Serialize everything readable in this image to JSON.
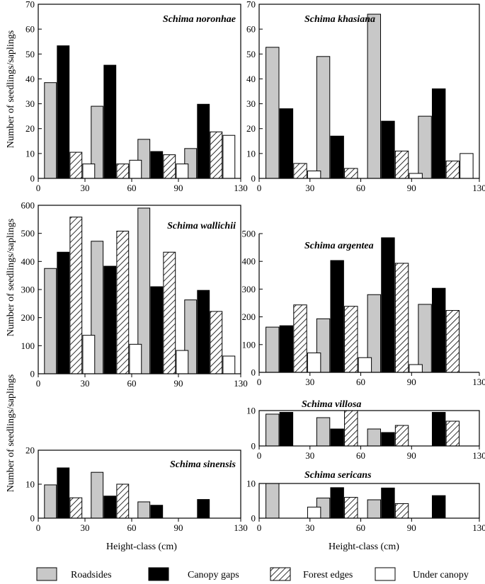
{
  "colors": {
    "roadsides": "#c8c8c8",
    "canopy_gaps": "#000000",
    "forest_edges": "hatch",
    "under_canopy": "#ffffff"
  },
  "legend": [
    {
      "key": "roadsides",
      "label": "Roadsides"
    },
    {
      "key": "canopy_gaps",
      "label": "Canopy gaps"
    },
    {
      "key": "forest_edges",
      "label": "Forest edges"
    },
    {
      "key": "under_canopy",
      "label": "Under canopy"
    }
  ],
  "labels": {
    "ylabel_left_top": "Number of seedlings/saplings",
    "ylabel_left_middle": "Number of seedlings/saplings",
    "ylabel_left_bottom": "Number of seedlings/saplings",
    "xlabel_left": "Height-class (cm)",
    "xlabel_right": "Height-class (cm)"
  },
  "chart_data": [
    {
      "id": "noronhae",
      "type": "bar",
      "title": "Schima noronhae",
      "xlim": [
        0,
        130
      ],
      "xticks": [
        0,
        30,
        60,
        90,
        130
      ],
      "ylim": [
        0,
        70
      ],
      "yticks": [
        0,
        10,
        20,
        30,
        40,
        50,
        60,
        70
      ],
      "categories": [
        "0-30",
        "30-60",
        "60-90",
        "90-130"
      ],
      "series": [
        {
          "name": "Roadsides",
          "key": "roadsides",
          "values": [
            38.5,
            29,
            15.7,
            12
          ]
        },
        {
          "name": "Canopy gaps",
          "key": "canopy_gaps",
          "values": [
            53.3,
            45.5,
            10.8,
            29.8
          ]
        },
        {
          "name": "Forest edges",
          "key": "forest_edges",
          "values": [
            10.5,
            5.8,
            9.5,
            18.7
          ]
        },
        {
          "name": "Under canopy",
          "key": "under_canopy",
          "values": [
            5.8,
            7.3,
            5.8,
            17.3
          ]
        }
      ]
    },
    {
      "id": "khasiana",
      "type": "bar",
      "title": "Schima khasiana",
      "xlim": [
        0,
        130
      ],
      "xticks": [
        0,
        30,
        60,
        90,
        130
      ],
      "ylim": [
        0,
        70
      ],
      "yticks": [
        0,
        10,
        20,
        30,
        40,
        50,
        60,
        70
      ],
      "categories": [
        "0-30",
        "30-60",
        "60-90",
        "90-130"
      ],
      "series": [
        {
          "name": "Roadsides",
          "key": "roadsides",
          "values": [
            52.7,
            49,
            66,
            25
          ]
        },
        {
          "name": "Canopy gaps",
          "key": "canopy_gaps",
          "values": [
            28,
            17,
            23,
            36
          ]
        },
        {
          "name": "Forest edges",
          "key": "forest_edges",
          "values": [
            6,
            4,
            11,
            7
          ]
        },
        {
          "name": "Under canopy",
          "key": "under_canopy",
          "values": [
            3,
            0,
            2,
            10
          ]
        }
      ]
    },
    {
      "id": "wallichii",
      "type": "bar",
      "title": "Schima wallichii",
      "xlim": [
        0,
        130
      ],
      "xticks": [
        0,
        30,
        60,
        90,
        130
      ],
      "ylim": [
        0,
        600
      ],
      "yticks": [
        0,
        100,
        200,
        300,
        400,
        500,
        600
      ],
      "categories": [
        "0-30",
        "30-60",
        "60-90",
        "90-130"
      ],
      "series": [
        {
          "name": "Roadsides",
          "key": "roadsides",
          "values": [
            375,
            472,
            590,
            263
          ]
        },
        {
          "name": "Canopy gaps",
          "key": "canopy_gaps",
          "values": [
            433,
            383,
            310,
            297
          ]
        },
        {
          "name": "Forest edges",
          "key": "forest_edges",
          "values": [
            558,
            508,
            433,
            222
          ]
        },
        {
          "name": "Under canopy",
          "key": "under_canopy",
          "values": [
            137,
            105,
            83,
            63
          ]
        }
      ]
    },
    {
      "id": "argentea",
      "type": "bar",
      "title": "Schima argentea",
      "xlim": [
        0,
        130
      ],
      "xticks": [
        0,
        30,
        60,
        90,
        130
      ],
      "ylim": [
        0,
        500
      ],
      "yticks": [
        0,
        100,
        200,
        300,
        400,
        500
      ],
      "categories": [
        "0-30",
        "30-60",
        "60-90",
        "90-130"
      ],
      "series": [
        {
          "name": "Roadsides",
          "key": "roadsides",
          "values": [
            163,
            193,
            280,
            245
          ]
        },
        {
          "name": "Canopy gaps",
          "key": "canopy_gaps",
          "values": [
            168,
            403,
            485,
            303
          ]
        },
        {
          "name": "Forest edges",
          "key": "forest_edges",
          "values": [
            243,
            238,
            393,
            223
          ]
        },
        {
          "name": "Under canopy",
          "key": "under_canopy",
          "values": [
            70,
            53,
            28,
            0
          ]
        }
      ]
    },
    {
      "id": "villosa",
      "type": "bar",
      "title": "Schima villosa",
      "xlim": [
        0,
        130
      ],
      "xticks": [
        0,
        30,
        60,
        90,
        130
      ],
      "ylim": [
        0,
        10
      ],
      "yticks": [
        0,
        10
      ],
      "categories": [
        "0-30",
        "30-60",
        "60-90",
        "90-130"
      ],
      "series": [
        {
          "name": "Roadsides",
          "key": "roadsides",
          "values": [
            9,
            8,
            4.8,
            0
          ]
        },
        {
          "name": "Canopy gaps",
          "key": "canopy_gaps",
          "values": [
            9.5,
            4.8,
            3.8,
            9.5
          ]
        },
        {
          "name": "Forest edges",
          "key": "forest_edges",
          "values": [
            0,
            10,
            5.8,
            7
          ]
        },
        {
          "name": "Under canopy",
          "key": "under_canopy",
          "values": [
            0,
            0,
            0,
            0
          ]
        }
      ]
    },
    {
      "id": "sinensis",
      "type": "bar",
      "title": "Schima sinensis",
      "xlim": [
        0,
        130
      ],
      "xticks": [
        0,
        30,
        60,
        90,
        130
      ],
      "ylim": [
        0,
        20
      ],
      "yticks": [
        0,
        10,
        20
      ],
      "categories": [
        "0-30",
        "30-60",
        "60-90",
        "90-130"
      ],
      "series": [
        {
          "name": "Roadsides",
          "key": "roadsides",
          "values": [
            9.8,
            13.5,
            4.8,
            0
          ]
        },
        {
          "name": "Canopy gaps",
          "key": "canopy_gaps",
          "values": [
            14.8,
            6.5,
            3.8,
            5.5
          ]
        },
        {
          "name": "Forest edges",
          "key": "forest_edges",
          "values": [
            6,
            10,
            0,
            0
          ]
        },
        {
          "name": "Under canopy",
          "key": "under_canopy",
          "values": [
            0,
            0,
            0,
            0
          ]
        }
      ]
    },
    {
      "id": "sericans",
      "type": "bar",
      "title": "Schima sericans",
      "xlim": [
        0,
        130
      ],
      "xticks": [
        0,
        30,
        60,
        90,
        130
      ],
      "ylim": [
        0,
        10
      ],
      "yticks": [
        0,
        10
      ],
      "categories": [
        "0-30",
        "30-60",
        "60-90",
        "90-130"
      ],
      "series": [
        {
          "name": "Roadsides",
          "key": "roadsides",
          "values": [
            10,
            5.8,
            5.3,
            0
          ]
        },
        {
          "name": "Canopy gaps",
          "key": "canopy_gaps",
          "values": [
            0,
            8.8,
            8.7,
            6.5
          ]
        },
        {
          "name": "Forest edges",
          "key": "forest_edges",
          "values": [
            0,
            6,
            4.2,
            0
          ]
        },
        {
          "name": "Under canopy",
          "key": "under_canopy",
          "values": [
            3.2,
            0,
            0,
            0
          ]
        }
      ]
    }
  ]
}
